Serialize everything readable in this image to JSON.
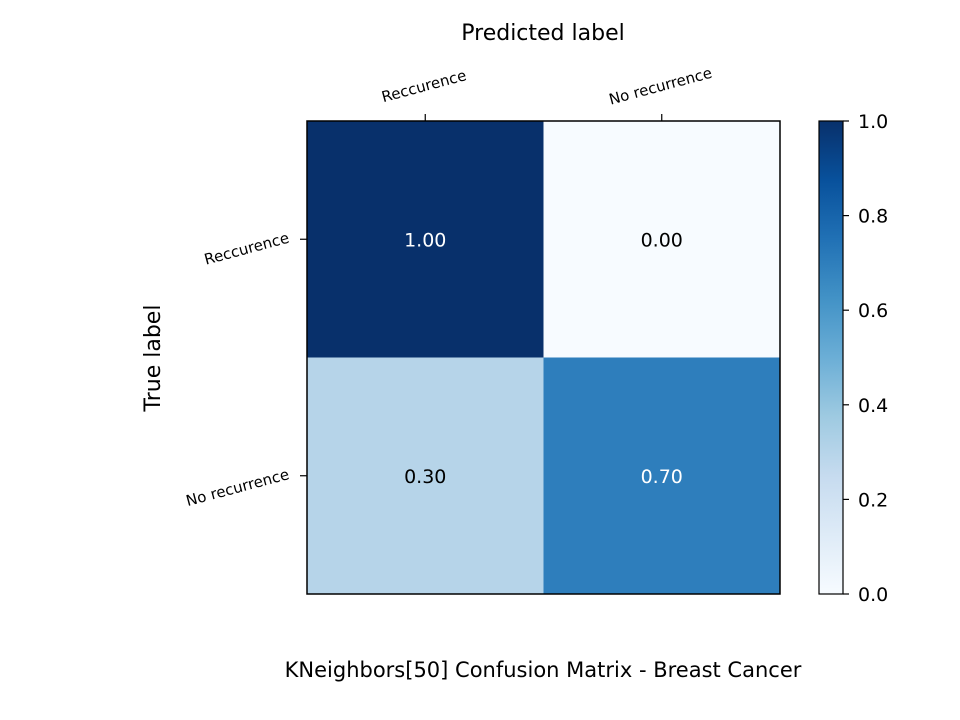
{
  "chart_data": {
    "type": "heatmap",
    "title": "KNeighbors[50]  Confusion Matrix - Breast Cancer",
    "xlabel": "Predicted label",
    "ylabel": "True label",
    "x_categories": [
      "Reccurence",
      "No recurrence"
    ],
    "y_categories": [
      "Reccurence",
      "No recurrence"
    ],
    "values": [
      [
        1.0,
        0.0
      ],
      [
        0.3,
        0.7
      ]
    ],
    "value_labels": [
      [
        "1.00",
        "0.00"
      ],
      [
        "0.30",
        "0.70"
      ]
    ],
    "colormap": "Blues",
    "colorbar": {
      "min": 0.0,
      "max": 1.0,
      "ticks": [
        "0.0",
        "0.2",
        "0.4",
        "0.6",
        "0.8",
        "1.0"
      ]
    },
    "grid": false
  },
  "colors": {
    "dark_text": "#000000",
    "light_text": "#ffffff",
    "cmap_stops": [
      "#f7fbff",
      "#deebf7",
      "#c6dbef",
      "#9ecae1",
      "#6baed6",
      "#4292c6",
      "#2171b5",
      "#08519c",
      "#08306b"
    ]
  }
}
